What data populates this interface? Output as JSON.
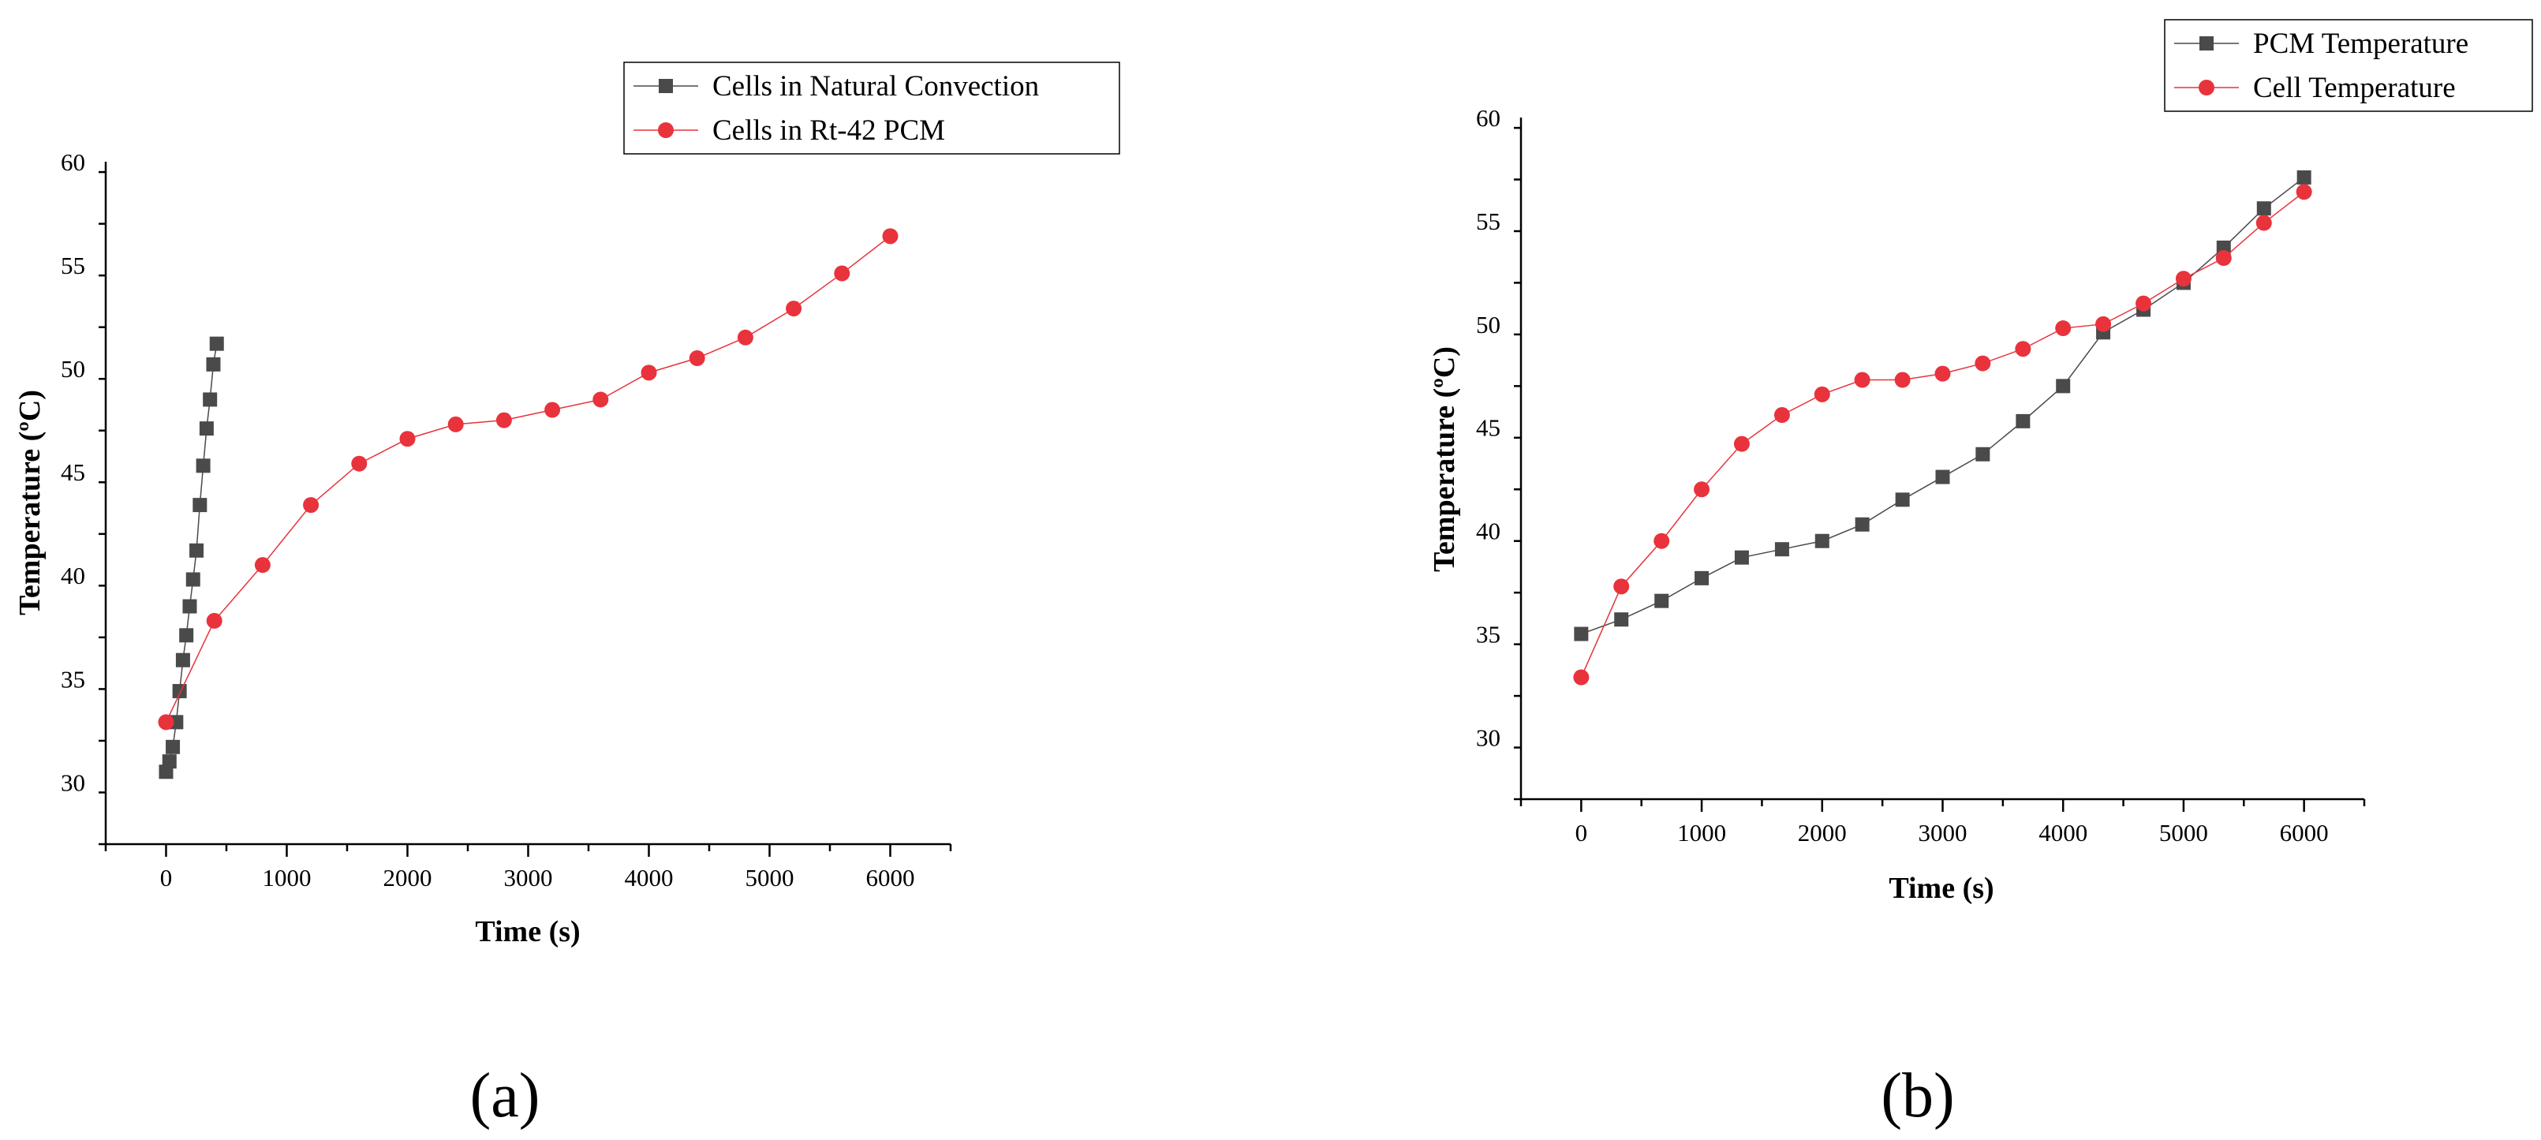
{
  "chart_data": [
    {
      "type": "line",
      "panel_label": "(a)",
      "xlabel": "Time (s)",
      "ylabel": "Temperature (ºC)",
      "xlim": [
        -500,
        6500
      ],
      "ylim": [
        27,
        60
      ],
      "xticks": [
        0,
        1000,
        2000,
        3000,
        4000,
        5000,
        6000
      ],
      "yticks": [
        30,
        35,
        40,
        45,
        50,
        55,
        60
      ],
      "legend": "top-right",
      "grid": false,
      "series": [
        {
          "name": "Cells in Natural Convection",
          "color": "#4a4a4a",
          "marker": "square",
          "x": [
            0,
            28,
            56,
            84,
            112,
            140,
            168,
            196,
            224,
            252,
            280,
            308,
            336,
            364,
            392,
            420
          ],
          "y": [
            30.5,
            31.0,
            31.7,
            32.9,
            34.4,
            35.9,
            37.1,
            38.5,
            39.8,
            41.2,
            43.4,
            45.3,
            47.1,
            48.5,
            50.2,
            51.2
          ]
        },
        {
          "name": "Cells in Rt-42 PCM",
          "color": "#e8333c",
          "marker": "circle",
          "x": [
            0,
            400,
            800,
            1200,
            1600,
            2000,
            2400,
            2800,
            3200,
            3600,
            4000,
            4400,
            4800,
            5200,
            5600,
            6000
          ],
          "y": [
            32.9,
            37.8,
            40.5,
            43.4,
            45.4,
            46.6,
            47.3,
            47.5,
            48.0,
            48.5,
            49.8,
            50.5,
            51.5,
            52.9,
            54.6,
            56.4
          ]
        }
      ]
    },
    {
      "type": "line",
      "panel_label": "(b)",
      "xlabel": "Time (s)",
      "ylabel": "Temperature (ºC)",
      "xlim": [
        -500,
        6500
      ],
      "ylim": [
        27,
        60
      ],
      "xticks": [
        0,
        1000,
        2000,
        3000,
        4000,
        5000,
        6000
      ],
      "yticks": [
        30,
        35,
        40,
        45,
        50,
        55,
        60
      ],
      "legend": "top-right",
      "grid": false,
      "series": [
        {
          "name": "PCM Temperature",
          "color": "#4a4a4a",
          "marker": "square",
          "x": [
            0,
            333,
            667,
            1000,
            1333,
            1667,
            2000,
            2333,
            2667,
            3000,
            3333,
            3667,
            4000,
            4333,
            4667,
            5000,
            5333,
            5667,
            6000
          ],
          "y": [
            35.0,
            35.7,
            36.6,
            37.7,
            38.7,
            39.1,
            39.5,
            40.3,
            41.5,
            42.6,
            43.7,
            45.3,
            47.0,
            49.6,
            50.7,
            52.0,
            53.7,
            55.6,
            57.1
          ]
        },
        {
          "name": "Cell Temperature",
          "color": "#e8333c",
          "marker": "circle",
          "x": [
            0,
            333,
            667,
            1000,
            1333,
            1667,
            2000,
            2333,
            2667,
            3000,
            3333,
            3667,
            4000,
            4333,
            4667,
            5000,
            5333,
            5667,
            6000
          ],
          "y": [
            32.9,
            37.3,
            39.5,
            42.0,
            44.2,
            45.6,
            46.6,
            47.3,
            47.3,
            47.6,
            48.1,
            48.8,
            49.8,
            50.0,
            51.0,
            52.2,
            53.2,
            54.9,
            56.4
          ]
        }
      ]
    }
  ]
}
